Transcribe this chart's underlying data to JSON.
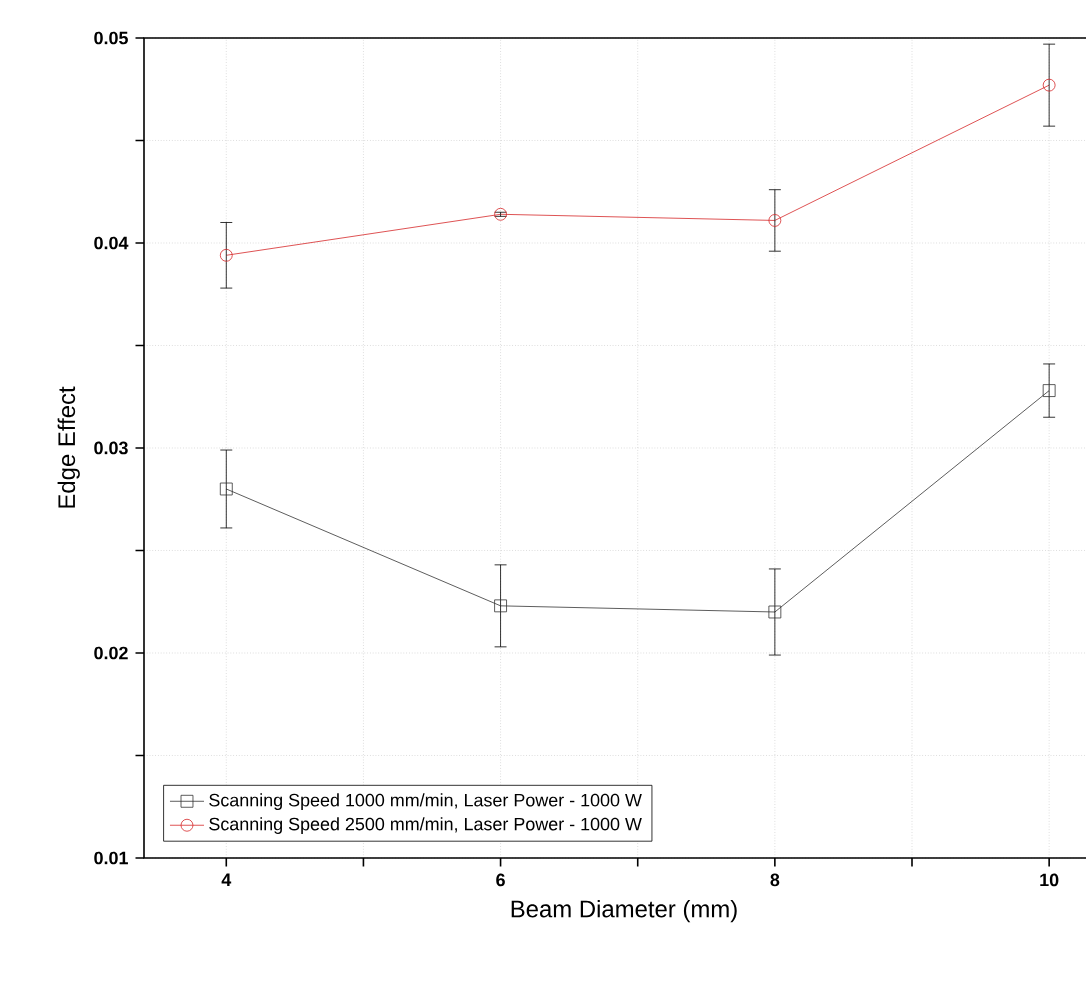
{
  "chart_data": {
    "type": "line",
    "xlabel": "Beam Diameter (mm)",
    "ylabel": "Edge Effect",
    "x": [
      4,
      6,
      8,
      10
    ],
    "series": [
      {
        "name": "Scanning Speed 1000 mm/min, Laser Power - 1000 W",
        "color": "#333333",
        "marker": "square",
        "values": [
          0.028,
          0.0223,
          0.022,
          0.0328
        ],
        "errors": [
          0.0019,
          0.002,
          0.0021,
          0.0013
        ]
      },
      {
        "name": "Scanning Speed 2500 mm/min, Laser Power - 1000 W",
        "color": "#d62728",
        "marker": "circle",
        "values": [
          0.0394,
          0.0414,
          0.0411,
          0.0477
        ],
        "errors": [
          0.0016,
          0.0001,
          0.0015,
          0.002
        ]
      }
    ],
    "xlim": [
      3.4,
      10.4
    ],
    "ylim": [
      0.01,
      0.05
    ],
    "xticks": [
      4,
      {
        "value": 5,
        "label": null
      },
      6,
      {
        "value": 7,
        "label": null
      },
      8,
      {
        "value": 9,
        "label": null
      },
      10
    ],
    "yticks": [
      0.01,
      {
        "value": 0.015,
        "label": null
      },
      0.02,
      {
        "value": 0.025,
        "label": null
      },
      0.03,
      {
        "value": 0.035,
        "label": null
      },
      0.04,
      {
        "value": 0.045,
        "label": null
      },
      0.05
    ],
    "grid": true,
    "legend": "bottom left",
    "line_style": "solid"
  }
}
